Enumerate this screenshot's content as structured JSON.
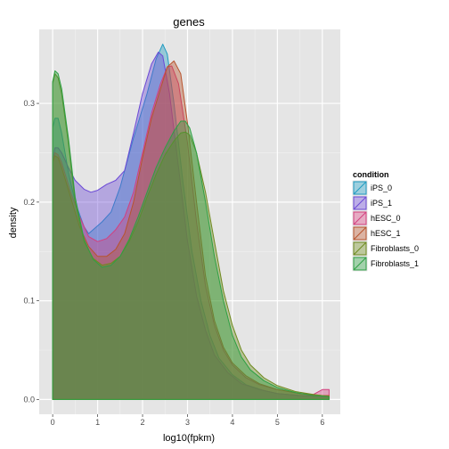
{
  "chart_data": {
    "type": "area",
    "title": "genes",
    "xlabel": "log10(fpkm)",
    "ylabel": "density",
    "xlim": [
      -0.3,
      6.4
    ],
    "ylim": [
      -0.015,
      0.375
    ],
    "x_ticks": [
      0,
      1,
      2,
      3,
      4,
      5,
      6
    ],
    "y_ticks": [
      0.0,
      0.1,
      0.2,
      0.3
    ],
    "y_tick_labels": [
      "0.0",
      "0.1",
      "0.2",
      "0.3"
    ],
    "grid": true,
    "legend_position": "right",
    "legend_title": "condition",
    "series": [
      {
        "name": "iPS_0",
        "color": "#1f9bc1",
        "points": [
          [
            0,
            0.275
          ],
          [
            0.05,
            0.285
          ],
          [
            0.12,
            0.285
          ],
          [
            0.2,
            0.27
          ],
          [
            0.35,
            0.23
          ],
          [
            0.5,
            0.2
          ],
          [
            0.7,
            0.175
          ],
          [
            0.8,
            0.168
          ],
          [
            0.9,
            0.172
          ],
          [
            1.1,
            0.18
          ],
          [
            1.3,
            0.19
          ],
          [
            1.5,
            0.215
          ],
          [
            1.8,
            0.265
          ],
          [
            2.1,
            0.31
          ],
          [
            2.3,
            0.345
          ],
          [
            2.45,
            0.36
          ],
          [
            2.55,
            0.35
          ],
          [
            2.7,
            0.3
          ],
          [
            2.9,
            0.22
          ],
          [
            3.1,
            0.15
          ],
          [
            3.3,
            0.1
          ],
          [
            3.5,
            0.065
          ],
          [
            3.7,
            0.042
          ],
          [
            4.0,
            0.025
          ],
          [
            4.3,
            0.015
          ],
          [
            4.7,
            0.009
          ],
          [
            5.0,
            0.006
          ],
          [
            5.5,
            0.004
          ],
          [
            6.0,
            0.003
          ],
          [
            6.15,
            0.003
          ]
        ]
      },
      {
        "name": "iPS_1",
        "color": "#6b49d6",
        "points": [
          [
            0,
            0.24
          ],
          [
            0.05,
            0.255
          ],
          [
            0.12,
            0.255
          ],
          [
            0.2,
            0.25
          ],
          [
            0.35,
            0.235
          ],
          [
            0.5,
            0.222
          ],
          [
            0.7,
            0.213
          ],
          [
            0.85,
            0.21
          ],
          [
            1.0,
            0.212
          ],
          [
            1.2,
            0.218
          ],
          [
            1.4,
            0.222
          ],
          [
            1.6,
            0.232
          ],
          [
            1.8,
            0.27
          ],
          [
            2.0,
            0.31
          ],
          [
            2.2,
            0.34
          ],
          [
            2.35,
            0.352
          ],
          [
            2.45,
            0.348
          ],
          [
            2.6,
            0.31
          ],
          [
            2.8,
            0.235
          ],
          [
            3.0,
            0.16
          ],
          [
            3.2,
            0.105
          ],
          [
            3.4,
            0.07
          ],
          [
            3.6,
            0.045
          ],
          [
            3.9,
            0.027
          ],
          [
            4.2,
            0.016
          ],
          [
            4.6,
            0.01
          ],
          [
            5.0,
            0.006
          ],
          [
            5.5,
            0.004
          ],
          [
            6.0,
            0.003
          ],
          [
            6.15,
            0.003
          ]
        ]
      },
      {
        "name": "hESC_0",
        "color": "#d43f7e",
        "points": [
          [
            0,
            0.24
          ],
          [
            0.05,
            0.25
          ],
          [
            0.12,
            0.248
          ],
          [
            0.2,
            0.24
          ],
          [
            0.4,
            0.21
          ],
          [
            0.6,
            0.185
          ],
          [
            0.8,
            0.165
          ],
          [
            1.0,
            0.16
          ],
          [
            1.2,
            0.163
          ],
          [
            1.4,
            0.172
          ],
          [
            1.6,
            0.185
          ],
          [
            1.8,
            0.21
          ],
          [
            2.0,
            0.25
          ],
          [
            2.2,
            0.29
          ],
          [
            2.4,
            0.32
          ],
          [
            2.55,
            0.337
          ],
          [
            2.65,
            0.338
          ],
          [
            2.8,
            0.32
          ],
          [
            3.0,
            0.26
          ],
          [
            3.2,
            0.18
          ],
          [
            3.4,
            0.115
          ],
          [
            3.6,
            0.075
          ],
          [
            3.8,
            0.05
          ],
          [
            4.0,
            0.035
          ],
          [
            4.3,
            0.022
          ],
          [
            4.6,
            0.015
          ],
          [
            5.0,
            0.01
          ],
          [
            5.5,
            0.006
          ],
          [
            5.8,
            0.005
          ],
          [
            6.0,
            0.01
          ],
          [
            6.15,
            0.01
          ]
        ]
      },
      {
        "name": "hESC_1",
        "color": "#b8542d",
        "points": [
          [
            0,
            0.24
          ],
          [
            0.05,
            0.247
          ],
          [
            0.12,
            0.245
          ],
          [
            0.2,
            0.235
          ],
          [
            0.4,
            0.205
          ],
          [
            0.6,
            0.175
          ],
          [
            0.8,
            0.155
          ],
          [
            1.0,
            0.145
          ],
          [
            1.2,
            0.145
          ],
          [
            1.4,
            0.152
          ],
          [
            1.6,
            0.168
          ],
          [
            1.8,
            0.2
          ],
          [
            2.0,
            0.245
          ],
          [
            2.2,
            0.285
          ],
          [
            2.4,
            0.315
          ],
          [
            2.55,
            0.337
          ],
          [
            2.7,
            0.343
          ],
          [
            2.85,
            0.33
          ],
          [
            3.0,
            0.28
          ],
          [
            3.2,
            0.2
          ],
          [
            3.4,
            0.125
          ],
          [
            3.6,
            0.08
          ],
          [
            3.8,
            0.053
          ],
          [
            4.0,
            0.037
          ],
          [
            4.3,
            0.024
          ],
          [
            4.6,
            0.016
          ],
          [
            5.0,
            0.01
          ],
          [
            5.5,
            0.006
          ],
          [
            6.0,
            0.004
          ],
          [
            6.15,
            0.004
          ]
        ]
      },
      {
        "name": "Fibroblasts_0",
        "color": "#6e8a1e",
        "points": [
          [
            0,
            0.32
          ],
          [
            0.05,
            0.33
          ],
          [
            0.12,
            0.326
          ],
          [
            0.2,
            0.31
          ],
          [
            0.35,
            0.26
          ],
          [
            0.5,
            0.2
          ],
          [
            0.7,
            0.16
          ],
          [
            0.9,
            0.143
          ],
          [
            1.1,
            0.136
          ],
          [
            1.3,
            0.138
          ],
          [
            1.5,
            0.145
          ],
          [
            1.7,
            0.16
          ],
          [
            1.9,
            0.18
          ],
          [
            2.1,
            0.205
          ],
          [
            2.3,
            0.228
          ],
          [
            2.5,
            0.248
          ],
          [
            2.7,
            0.262
          ],
          [
            2.85,
            0.27
          ],
          [
            2.95,
            0.271
          ],
          [
            3.05,
            0.268
          ],
          [
            3.2,
            0.25
          ],
          [
            3.4,
            0.21
          ],
          [
            3.6,
            0.16
          ],
          [
            3.8,
            0.11
          ],
          [
            4.0,
            0.075
          ],
          [
            4.2,
            0.05
          ],
          [
            4.4,
            0.035
          ],
          [
            4.7,
            0.022
          ],
          [
            5.0,
            0.014
          ],
          [
            5.4,
            0.008
          ],
          [
            5.8,
            0.005
          ],
          [
            6.15,
            0.003
          ]
        ]
      },
      {
        "name": "Fibroblasts_1",
        "color": "#2ea043",
        "points": [
          [
            0,
            0.322
          ],
          [
            0.05,
            0.333
          ],
          [
            0.12,
            0.33
          ],
          [
            0.2,
            0.315
          ],
          [
            0.35,
            0.265
          ],
          [
            0.5,
            0.205
          ],
          [
            0.7,
            0.162
          ],
          [
            0.9,
            0.142
          ],
          [
            1.1,
            0.134
          ],
          [
            1.3,
            0.136
          ],
          [
            1.5,
            0.145
          ],
          [
            1.7,
            0.162
          ],
          [
            1.9,
            0.185
          ],
          [
            2.1,
            0.21
          ],
          [
            2.3,
            0.235
          ],
          [
            2.5,
            0.255
          ],
          [
            2.7,
            0.272
          ],
          [
            2.85,
            0.282
          ],
          [
            2.95,
            0.282
          ],
          [
            3.05,
            0.275
          ],
          [
            3.2,
            0.25
          ],
          [
            3.4,
            0.2
          ],
          [
            3.6,
            0.145
          ],
          [
            3.8,
            0.1
          ],
          [
            4.0,
            0.065
          ],
          [
            4.2,
            0.043
          ],
          [
            4.4,
            0.03
          ],
          [
            4.7,
            0.019
          ],
          [
            5.0,
            0.012
          ],
          [
            5.4,
            0.007
          ],
          [
            5.8,
            0.004
          ],
          [
            6.15,
            0.003
          ]
        ]
      }
    ]
  }
}
